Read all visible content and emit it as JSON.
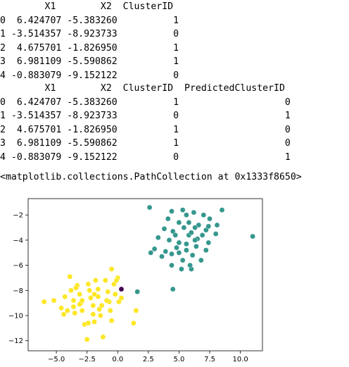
{
  "tables": [
    {
      "header": "        X1        X2  ClusterID",
      "rows": [
        "0  6.424707 -5.383260          1",
        "1 -3.514357 -8.923733          0",
        "2  4.675701 -1.826950          1",
        "3  6.981109 -5.590862          1",
        "4 -0.883079 -9.152122          0"
      ]
    },
    {
      "header": "        X1        X2  ClusterID  PredictedClusterID",
      "rows": [
        "0  6.424707 -5.383260          1                   0",
        "1 -3.514357 -8.923733          0                   1",
        "2  4.675701 -1.826950          1                   0",
        "3  6.981109 -5.590862          1                   0",
        "4 -0.883079 -9.152122          0                   1"
      ]
    }
  ],
  "output_repr": "<matplotlib.collections.PathCollection at 0x1333f8650>",
  "chart_data": {
    "type": "scatter",
    "xlim": [
      -7.3,
      11.8
    ],
    "ylim": [
      -12.8,
      -0.7
    ],
    "xticks": [
      -5.0,
      -2.5,
      0.0,
      2.5,
      5.0,
      7.5,
      10.0
    ],
    "xtick_labels": [
      "−5.0",
      "−2.5",
      "0.0",
      "2.5",
      "5.0",
      "7.5",
      "10.0"
    ],
    "yticks": [
      -2,
      -4,
      -6,
      -8,
      -10,
      -12
    ],
    "ytick_labels": [
      "−2",
      "−4",
      "−6",
      "−8",
      "−10",
      "−12"
    ],
    "grid": false,
    "colors": {
      "yellow": "#fde725",
      "teal": "#35978e",
      "purple": "#440154"
    },
    "series": [
      {
        "color": "yellow",
        "points": [
          [
            -6.0,
            -8.9
          ],
          [
            -5.2,
            -8.8
          ],
          [
            -4.6,
            -9.4
          ],
          [
            -4.4,
            -9.9
          ],
          [
            -4.1,
            -9.6
          ],
          [
            -4.3,
            -8.5
          ],
          [
            -3.9,
            -6.9
          ],
          [
            -3.8,
            -8.0
          ],
          [
            -3.6,
            -8.8
          ],
          [
            -3.6,
            -9.3
          ],
          [
            -3.5,
            -9.8
          ],
          [
            -3.3,
            -7.6
          ],
          [
            -3.1,
            -8.3
          ],
          [
            -3.0,
            -9.0
          ],
          [
            -2.9,
            -9.6
          ],
          [
            -2.7,
            -10.7
          ],
          [
            -2.5,
            -11.9
          ],
          [
            -2.4,
            -7.5
          ],
          [
            -2.3,
            -8.0
          ],
          [
            -2.2,
            -8.6
          ],
          [
            -2.0,
            -9.2
          ],
          [
            -2.0,
            -9.9
          ],
          [
            -1.9,
            -10.5
          ],
          [
            -1.8,
            -7.2
          ],
          [
            -1.6,
            -7.9
          ],
          [
            -1.6,
            -8.5
          ],
          [
            -1.5,
            -9.5
          ],
          [
            -1.4,
            -10.0
          ],
          [
            -1.2,
            -11.7
          ],
          [
            -1.0,
            -7.2
          ],
          [
            -0.8,
            -8.1
          ],
          [
            -0.7,
            -8.9
          ],
          [
            -0.6,
            -9.6
          ],
          [
            -0.5,
            -10.4
          ],
          [
            -0.3,
            -7.5
          ],
          [
            -0.2,
            -8.3
          ],
          [
            -0.5,
            -6.3
          ],
          [
            0.0,
            -7.0
          ],
          [
            0.1,
            -8.9
          ],
          [
            0.3,
            -8.6
          ],
          [
            -2.4,
            -10.6
          ],
          [
            -3.1,
            -9.1
          ],
          [
            -1.3,
            -9.2
          ],
          [
            1.5,
            -9.6
          ],
          [
            1.3,
            -10.6
          ],
          [
            -0.9,
            -8.8
          ],
          [
            -3.4,
            -7.8
          ],
          [
            -2.9,
            -8.8
          ],
          [
            -1.9,
            -8.3
          ],
          [
            -0.1,
            -7.2
          ]
        ]
      },
      {
        "color": "teal",
        "points": [
          [
            2.6,
            -1.4
          ],
          [
            4.4,
            -1.7
          ],
          [
            5.3,
            -1.6
          ],
          [
            5.6,
            -2.0
          ],
          [
            6.2,
            -1.8
          ],
          [
            7.0,
            -2.0
          ],
          [
            8.5,
            -1.6
          ],
          [
            4.1,
            -2.3
          ],
          [
            5.0,
            -2.6
          ],
          [
            5.8,
            -2.6
          ],
          [
            6.6,
            -2.8
          ],
          [
            7.5,
            -2.3
          ],
          [
            8.1,
            -2.8
          ],
          [
            3.8,
            -3.1
          ],
          [
            4.5,
            -3.3
          ],
          [
            5.4,
            -3.0
          ],
          [
            6.3,
            -3.0
          ],
          [
            7.2,
            -3.2
          ],
          [
            8.0,
            -3.5
          ],
          [
            3.3,
            -3.8
          ],
          [
            4.2,
            -4.0
          ],
          [
            5.0,
            -4.2
          ],
          [
            5.8,
            -3.6
          ],
          [
            6.5,
            -3.9
          ],
          [
            7.4,
            -4.2
          ],
          [
            3.0,
            -4.7
          ],
          [
            3.9,
            -4.9
          ],
          [
            4.8,
            -4.6
          ],
          [
            5.6,
            -4.3
          ],
          [
            6.4,
            -4.5
          ],
          [
            7.2,
            -4.8
          ],
          [
            2.7,
            -5.0
          ],
          [
            3.6,
            -5.3
          ],
          [
            4.4,
            -5.1
          ],
          [
            5.3,
            -5.6
          ],
          [
            6.1,
            -5.2
          ],
          [
            6.8,
            -5.6
          ],
          [
            4.4,
            -6.0
          ],
          [
            5.2,
            -6.3
          ],
          [
            6.0,
            -6.3
          ],
          [
            4.5,
            -7.9
          ],
          [
            11.0,
            -3.7
          ],
          [
            5.6,
            -4.8
          ],
          [
            6.9,
            -3.6
          ],
          [
            5.9,
            -6.0
          ],
          [
            4.7,
            -3.6
          ],
          [
            6.3,
            -4.0
          ],
          [
            5.0,
            -5.0
          ],
          [
            7.4,
            -2.9
          ],
          [
            6.0,
            -3.4
          ]
        ]
      },
      {
        "color": "teal",
        "points": [
          [
            1.6,
            -8.1
          ]
        ]
      },
      {
        "color": "purple",
        "points": [
          [
            0.3,
            -7.9
          ]
        ]
      }
    ]
  }
}
